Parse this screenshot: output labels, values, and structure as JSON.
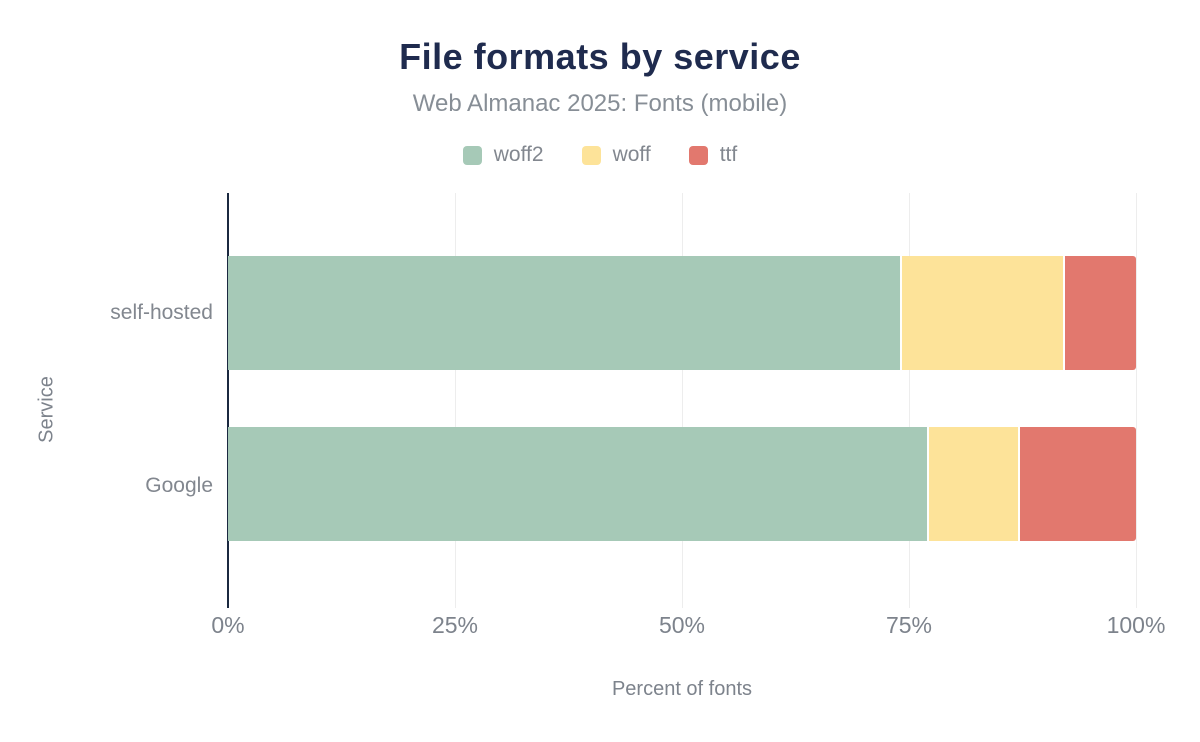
{
  "header": {
    "title": "File formats by service",
    "subtitle": "Web Almanac 2025: Fonts (mobile)"
  },
  "legend": [
    {
      "label": "woff2",
      "color": "#a6c9b7"
    },
    {
      "label": "woff",
      "color": "#fde399"
    },
    {
      "label": "ttf",
      "color": "#e2786e"
    }
  ],
  "chart_data": {
    "type": "bar",
    "orientation": "horizontal",
    "stacked": true,
    "title": "File formats by service",
    "subtitle": "Web Almanac 2025: Fonts (mobile)",
    "categories": [
      "self-hosted",
      "Google"
    ],
    "series": [
      {
        "name": "woff2",
        "color": "#a6c9b7",
        "values": [
          74,
          77
        ]
      },
      {
        "name": "woff",
        "color": "#fde399",
        "values": [
          18,
          10
        ]
      },
      {
        "name": "ttf",
        "color": "#e2786e",
        "values": [
          8,
          13
        ]
      }
    ],
    "unit": "%",
    "xlabel": "Percent of fonts",
    "ylabel": "Service",
    "xlim": [
      0,
      100
    ],
    "x_ticks": [
      "0%",
      "25%",
      "50%",
      "75%",
      "100%"
    ],
    "grid": "vertical",
    "legend_position": "top"
  },
  "colors": {
    "title_text": "#1f2b4e",
    "muted_text": "#82878f",
    "tick_text": "#7d838c",
    "axis_line": "#1b2940",
    "gridline": "#ededed",
    "background": "#ffffff"
  }
}
